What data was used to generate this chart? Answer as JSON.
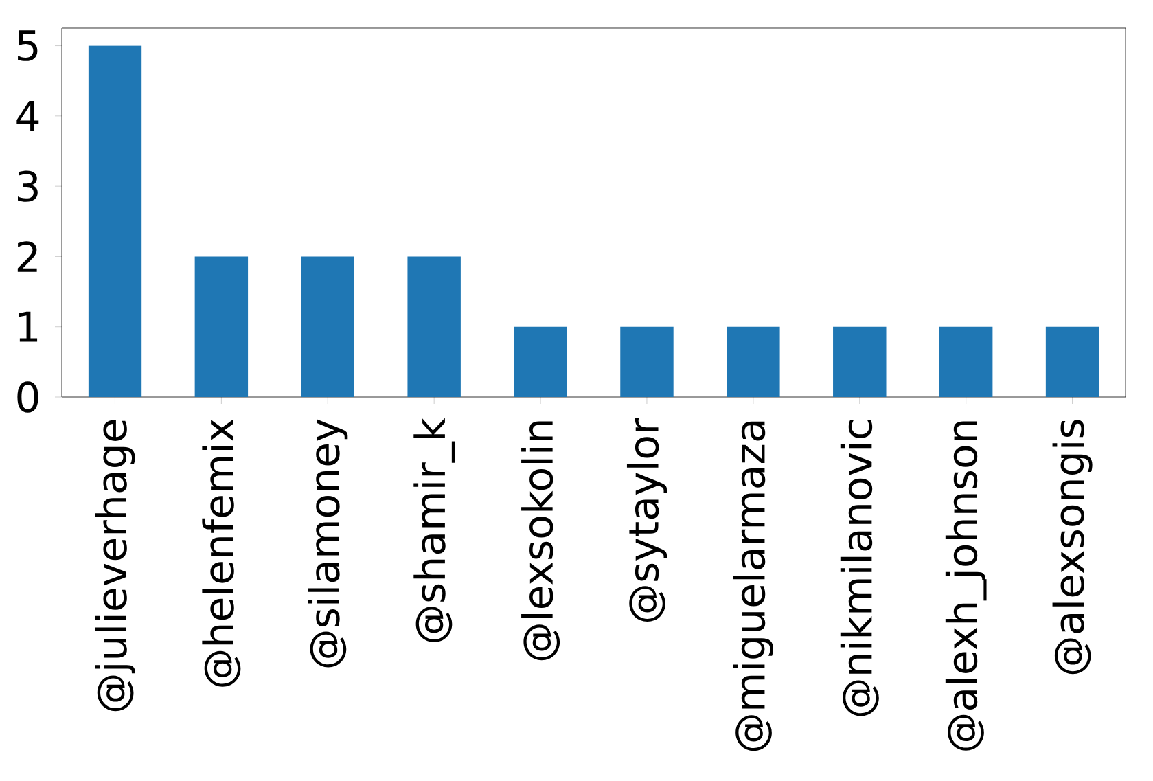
{
  "chart_data": {
    "type": "bar",
    "categories": [
      "@julieverhage",
      "@helenfemix",
      "@silamoney",
      "@shamir_k",
      "@lexsokolin",
      "@sytaylor",
      "@miguelarmaza",
      "@nikmilanovic",
      "@alexh_johnson",
      "@alexsongis"
    ],
    "values": [
      5,
      2,
      2,
      2,
      1,
      1,
      1,
      1,
      1,
      1
    ],
    "color": "#1f77b4",
    "ylim": [
      0,
      5.25
    ],
    "yticks": [
      0,
      1,
      2,
      3,
      4,
      5
    ]
  }
}
